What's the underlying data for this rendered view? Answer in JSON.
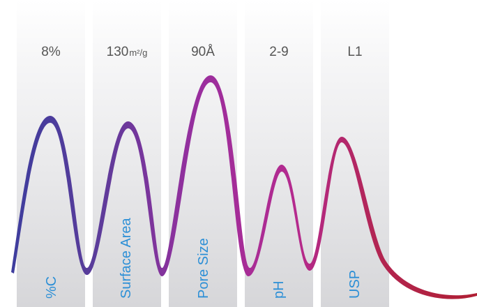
{
  "columns": [
    {
      "value": "8%",
      "unit": "",
      "label": "%C"
    },
    {
      "value": "130",
      "unit": "m²/g",
      "label": "Surface Area"
    },
    {
      "value": "90Å",
      "unit": "",
      "label": "Pore Size"
    },
    {
      "value": "2-9",
      "unit": "",
      "label": "pH"
    },
    {
      "value": "L1",
      "unit": "",
      "label": "USP"
    }
  ],
  "colors": {
    "value_text": "#555555",
    "label_text": "#2c8fd6",
    "wave_start": "#3e3aa0",
    "wave_mid": "#a92d9a",
    "wave_end": "#b3203e"
  }
}
